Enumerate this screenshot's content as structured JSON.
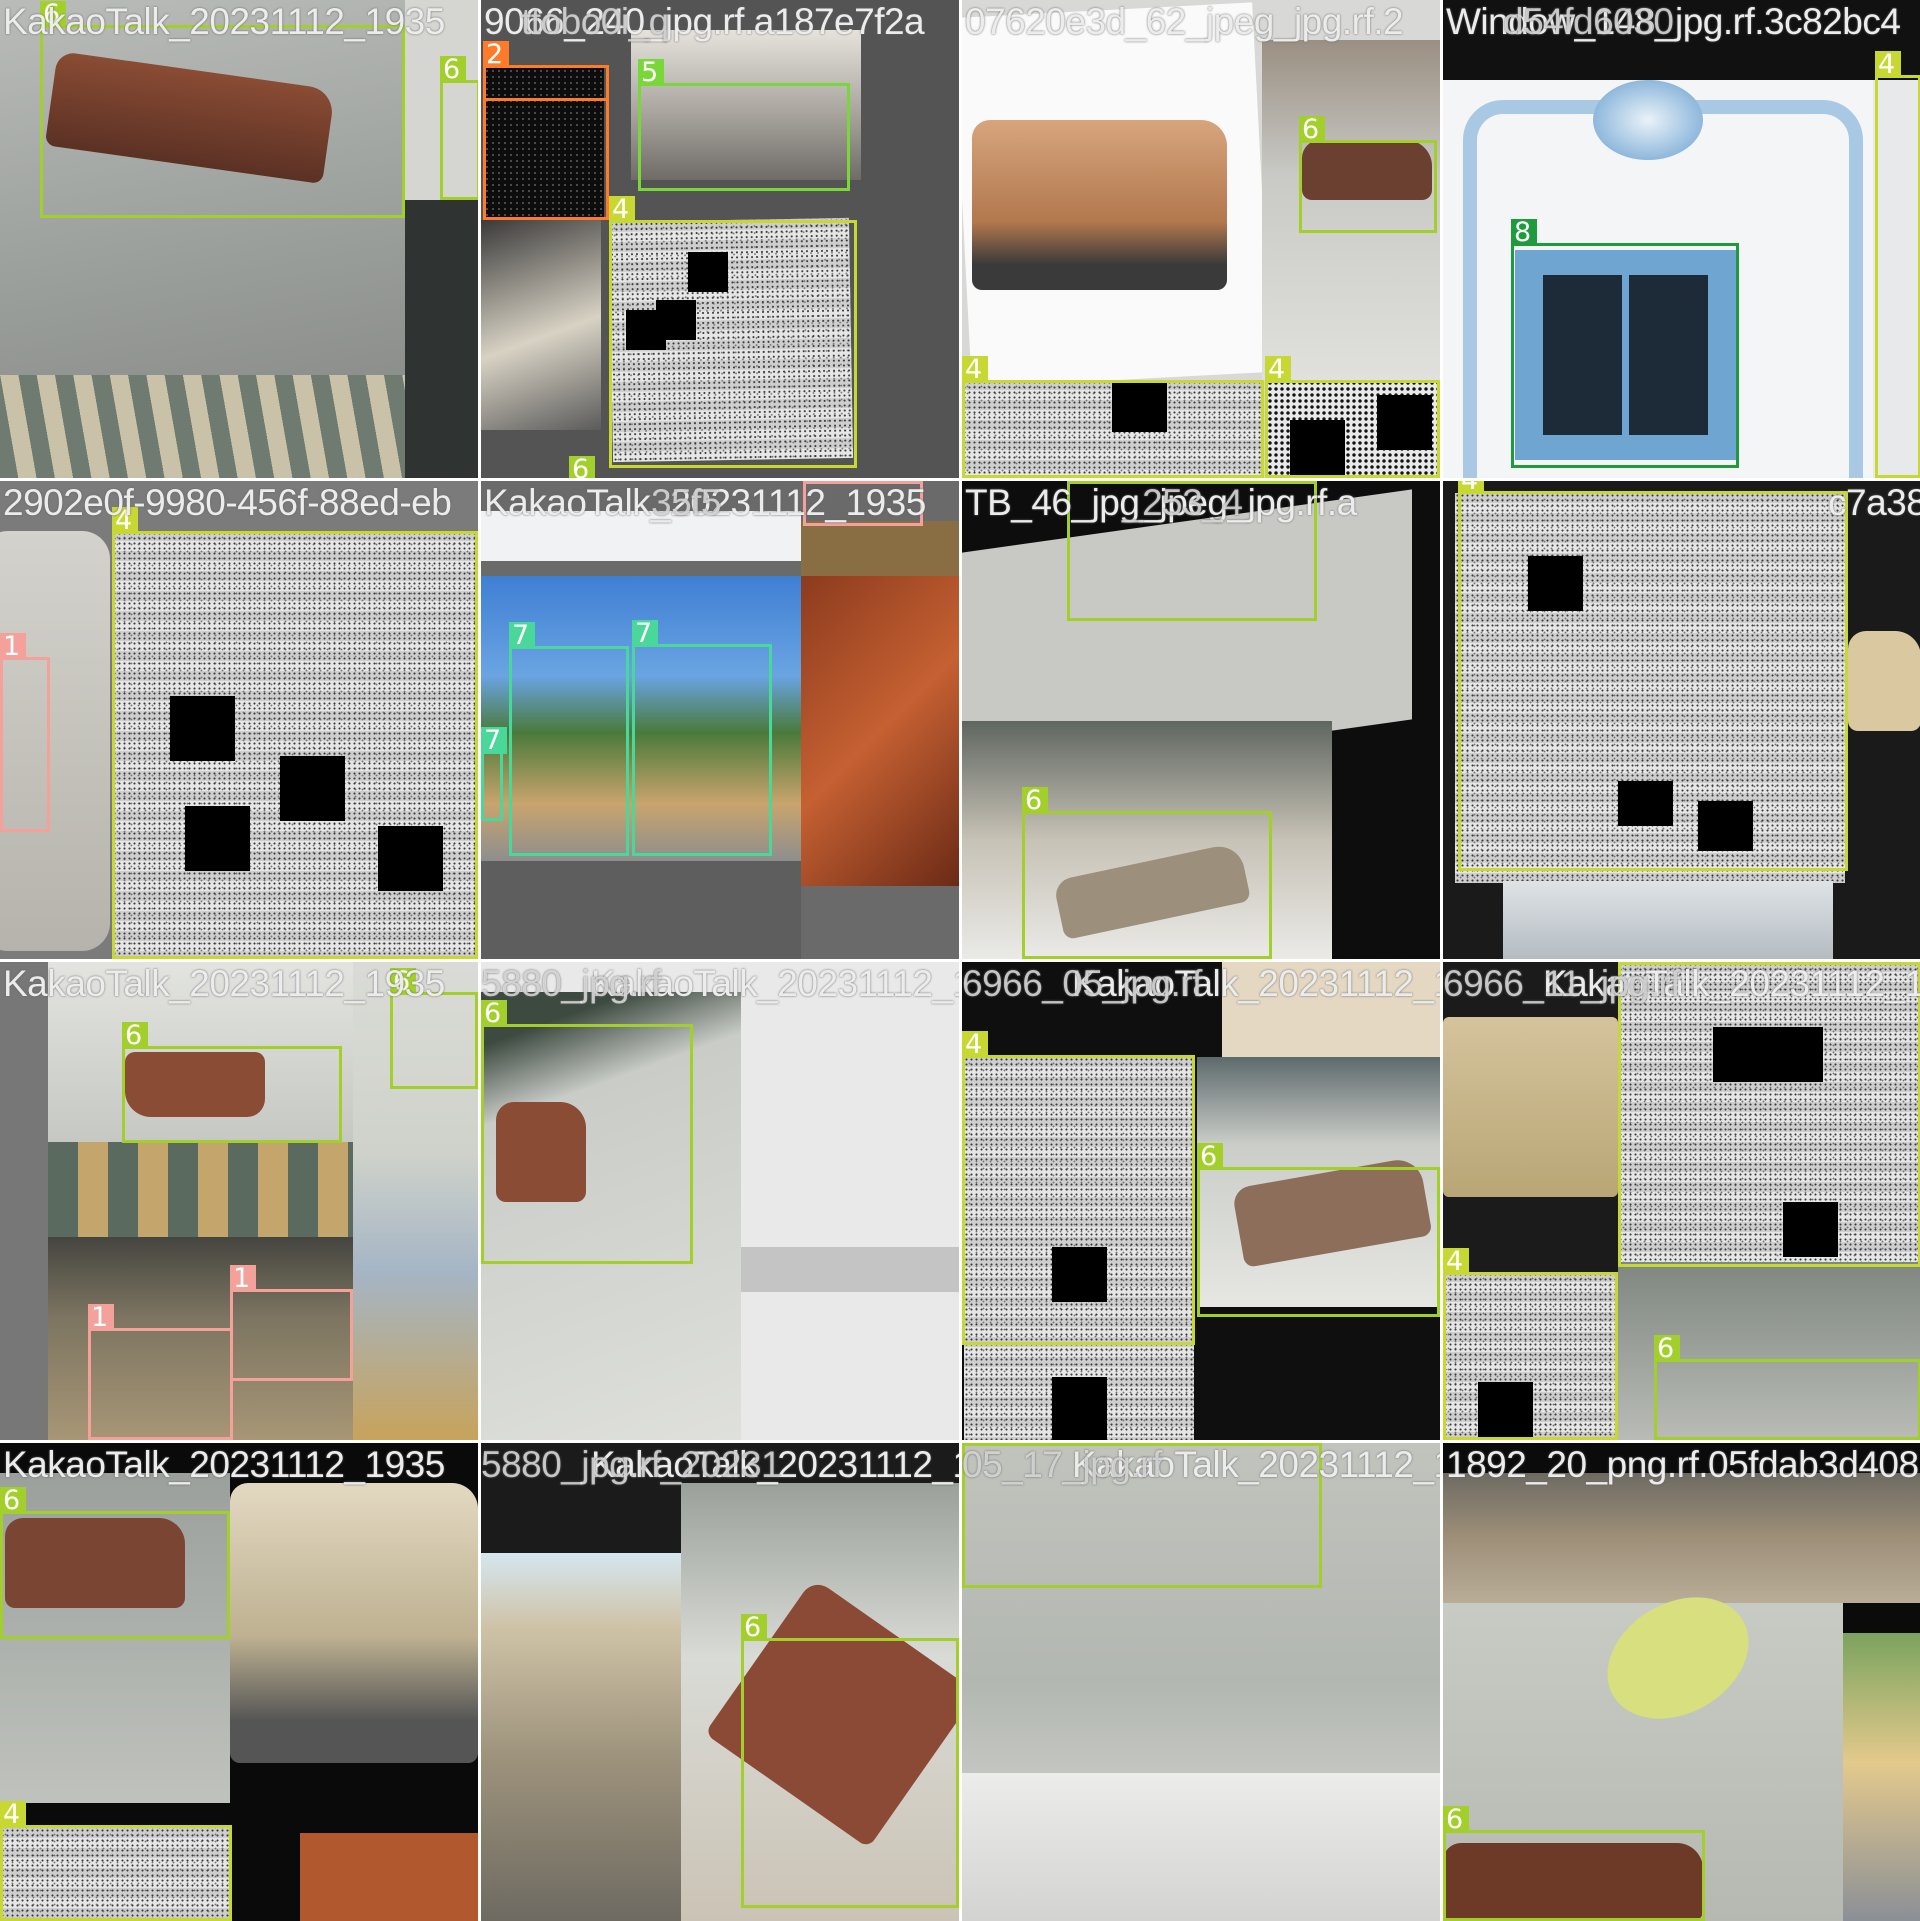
{
  "colors": {
    "1": "#f4a19c",
    "2": "#ff7a29",
    "4": "#c8d832",
    "5": "#79d73a",
    "6": "#a3cf2a",
    "7": "#49d79a",
    "8": "#1f9a3d"
  },
  "tiles": [
    {
      "filename": "KakaoTalk_20231112_1935",
      "overlay": "",
      "labels": [
        {
          "cls": "6"
        },
        {
          "cls": "6"
        }
      ]
    },
    {
      "filename": "9066_240_jpg.rf.a187e7f2a",
      "overlay": "ttobo0i_q",
      "labels": [
        {
          "cls": "2"
        },
        {
          "cls": "2"
        },
        {
          "cls": "5"
        },
        {
          "cls": "4"
        },
        {
          "cls": "6"
        }
      ]
    },
    {
      "filename": "07620e3d_62_jpeg_jpg.rf.2",
      "overlay": "",
      "labels": [
        {
          "cls": "6"
        },
        {
          "cls": "4"
        },
        {
          "cls": "4"
        }
      ]
    },
    {
      "filename": "Window_148_jpg.rf.3c82bc4",
      "overlay": "d54fd6030",
      "labels": [
        {
          "cls": "8"
        },
        {
          "cls": "4"
        }
      ]
    },
    {
      "filename": "2902e0f-9980-456f-88ed-eb",
      "overlay": "",
      "labels": [
        {
          "cls": "1"
        },
        {
          "cls": "4"
        }
      ]
    },
    {
      "filename": "KakaoTalk_20231112_1935",
      "overlay": "35f5",
      "labels": [
        {
          "cls": "1"
        },
        {
          "cls": "7"
        },
        {
          "cls": "7"
        },
        {
          "cls": "7"
        }
      ]
    },
    {
      "filename": "TB_46_jpg_jpeg_jpg.rf.a",
      "overlay": "_253_4",
      "labels": [
        {
          "cls": "6"
        },
        {
          "cls": "6"
        }
      ]
    },
    {
      "filename": "c7a38c",
      "overlay": "",
      "labels": [
        {
          "cls": "4"
        }
      ]
    },
    {
      "filename": "KakaoTalk_20231112_1935",
      "overlay": "",
      "labels": [
        {
          "cls": "6"
        },
        {
          "cls": "6"
        },
        {
          "cls": "1"
        },
        {
          "cls": "1"
        }
      ]
    },
    {
      "filename": "KakaoTalk_20231112_19365",
      "overlay": "5880_jpg.rf",
      "labels": [
        {
          "cls": "6"
        }
      ]
    },
    {
      "filename": "KakaoTalk_20231112_19365",
      "overlay": "6966_05_jpg.rf",
      "labels": [
        {
          "cls": "4"
        },
        {
          "cls": "6"
        }
      ]
    },
    {
      "filename": "KakaoTalk_20231112_1935",
      "overlay": "6966_11_jpg.rf",
      "labels": [
        {
          "cls": "4"
        },
        {
          "cls": "4"
        },
        {
          "cls": "6"
        }
      ]
    },
    {
      "filename": "KakaoTalk_20231112_1935",
      "overlay": "",
      "labels": [
        {
          "cls": "6"
        },
        {
          "cls": "4"
        }
      ]
    },
    {
      "filename": "KakaoTalk_20231112_1936",
      "overlay": "5880_jpg.rf_20231",
      "labels": [
        {
          "cls": "6"
        }
      ]
    },
    {
      "filename": "KakaoTalk_20231112_1935",
      "overlay": "05_17_jpg.rf",
      "labels": [
        {
          "cls": "6"
        }
      ]
    },
    {
      "filename": "1892_20_png.rf.05fdab3d408",
      "overlay": "3",
      "labels": [
        {
          "cls": "6"
        }
      ]
    }
  ]
}
